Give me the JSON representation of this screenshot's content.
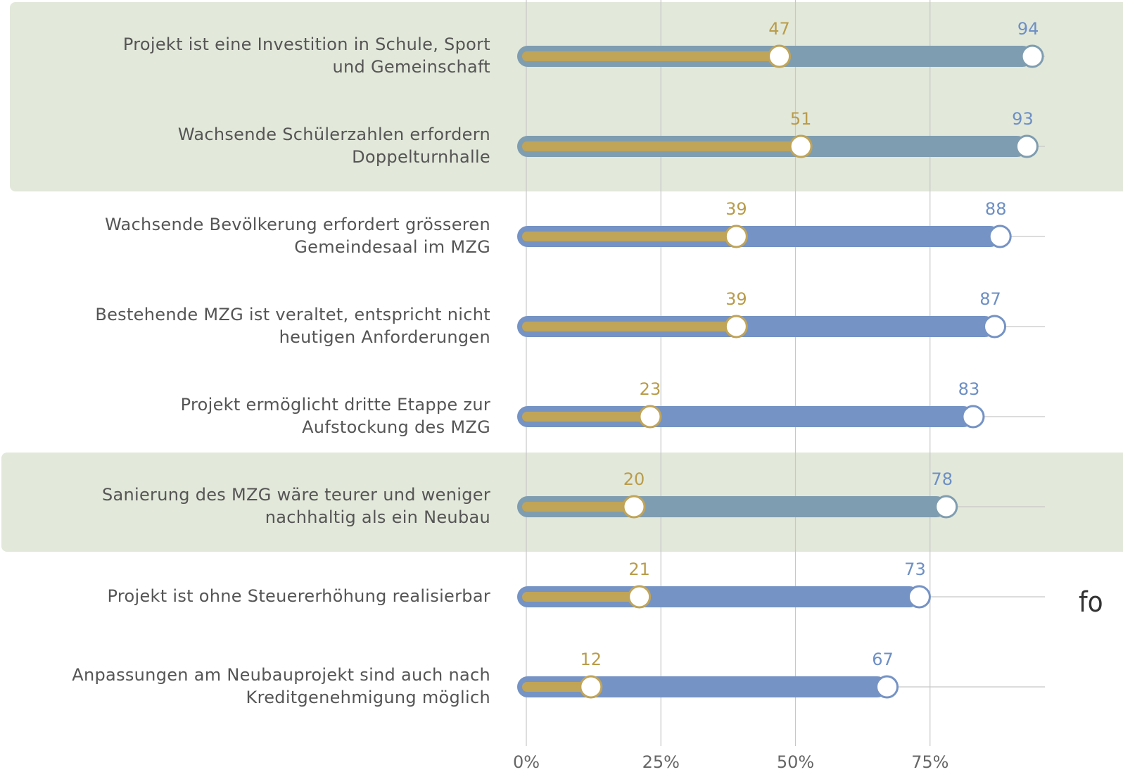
{
  "chart_data": {
    "type": "dumbbell",
    "categories": [
      "Projekt ist eine Investition in Schule, Sport\nund Gemeinschaft",
      "Wachsende Schülerzahlen erfordern\nDoppelturnhalle",
      "Wachsende Bevölkerung erfordert grösseren\nGemeindesaal im MZG",
      "Bestehende MZG ist veraltet, entspricht nicht\nheutigen Anforderungen",
      "Projekt ermöglicht dritte Etappe zur\nAufstockung des MZG",
      "Sanierung des MZG wäre teurer und weniger\nnachhaltig als ein Neubau",
      "Projekt ist ohne Steuererhöhung realisierbar",
      "Anpassungen am Neubauprojekt sind auch nach\nKreditgenehmigung möglich"
    ],
    "series": [
      {
        "color": "#7593c4",
        "highlight_color": "#7f9db0",
        "label_color": "#6d8fc4",
        "values": [
          94,
          93,
          88,
          87,
          83,
          78,
          73,
          67
        ]
      },
      {
        "color": "#c0a458",
        "label_color": "#b99c4b",
        "values": [
          47,
          51,
          39,
          39,
          23,
          20,
          21,
          12
        ]
      }
    ],
    "highlight": [
      true,
      true,
      false,
      false,
      false,
      true,
      false,
      false
    ],
    "highlight_background": "#e2e8da",
    "xlim": [
      0,
      100
    ],
    "xticks": [
      {
        "value": 0,
        "label": "0%"
      },
      {
        "value": 25,
        "label": "25%"
      },
      {
        "value": 50,
        "label": "50%"
      },
      {
        "value": 75,
        "label": "75%"
      }
    ],
    "grid": true,
    "annotation": "fo"
  }
}
